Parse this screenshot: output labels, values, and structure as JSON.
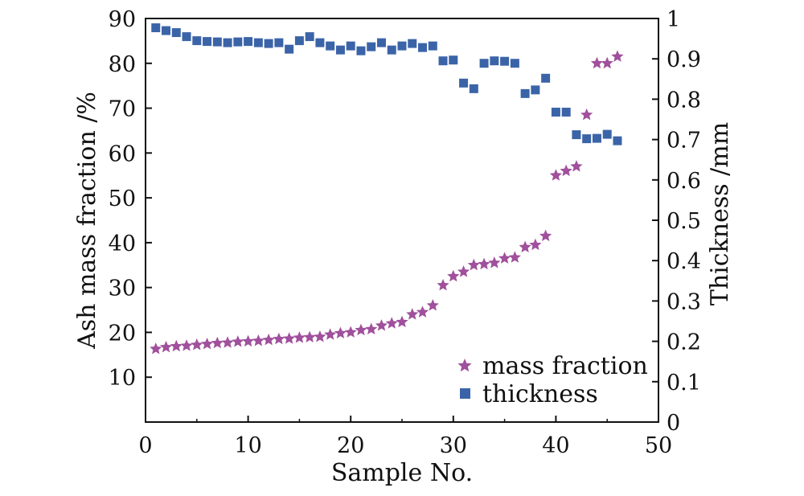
{
  "chart_data": {
    "type": "scatter",
    "xlabel": "Sample No.",
    "ylabel_left": "Ash mass fraction /%",
    "ylabel_right": "Thickness /mm",
    "xlim": [
      0,
      50
    ],
    "ylim_left": [
      0,
      90
    ],
    "ylim_right": [
      0,
      1.0
    ],
    "x_ticks": [
      0,
      10,
      20,
      30,
      40,
      50
    ],
    "y_left_ticks": [
      10,
      20,
      30,
      40,
      50,
      60,
      70,
      80,
      90
    ],
    "y_right_ticks": [
      0,
      0.1,
      0.2,
      0.3,
      0.4,
      0.5,
      0.6,
      0.7,
      0.8,
      0.9,
      1.0
    ],
    "grid": false,
    "legend_position": "bottom-right",
    "series": [
      {
        "name": "mass fraction",
        "axis": "left",
        "marker": "star",
        "color": "#a0509c",
        "x": [
          1,
          2,
          3,
          4,
          5,
          6,
          7,
          8,
          9,
          10,
          11,
          12,
          13,
          14,
          15,
          16,
          17,
          18,
          19,
          20,
          21,
          22,
          23,
          24,
          25,
          26,
          27,
          28,
          29,
          30,
          31,
          32,
          33,
          34,
          35,
          36,
          37,
          38,
          39,
          40,
          41,
          42,
          43,
          44,
          45,
          46
        ],
        "y": [
          16.3,
          16.7,
          16.9,
          17.0,
          17.2,
          17.4,
          17.6,
          17.7,
          17.9,
          18.0,
          18.1,
          18.3,
          18.5,
          18.6,
          18.8,
          18.9,
          19.0,
          19.5,
          19.8,
          20.0,
          20.5,
          20.7,
          21.5,
          22.0,
          22.3,
          24.0,
          24.5,
          26.0,
          30.5,
          32.5,
          33.5,
          35.0,
          35.2,
          35.5,
          36.5,
          36.7,
          39.0,
          39.5,
          41.5,
          55.0,
          56.0,
          57.0,
          68.5,
          80.0,
          80.0,
          81.5
        ]
      },
      {
        "name": "thickness",
        "axis": "right",
        "marker": "square",
        "color": "#3b64a8",
        "x": [
          1,
          2,
          3,
          4,
          5,
          6,
          7,
          8,
          9,
          10,
          11,
          12,
          13,
          14,
          15,
          16,
          17,
          18,
          19,
          20,
          21,
          22,
          23,
          24,
          25,
          26,
          27,
          28,
          29,
          30,
          31,
          32,
          33,
          34,
          35,
          36,
          37,
          38,
          39,
          40,
          41,
          42,
          43,
          44,
          45,
          46
        ],
        "y": [
          0.977,
          0.97,
          0.965,
          0.955,
          0.945,
          0.943,
          0.942,
          0.94,
          0.942,
          0.943,
          0.94,
          0.938,
          0.94,
          0.924,
          0.945,
          0.955,
          0.94,
          0.932,
          0.922,
          0.932,
          0.92,
          0.93,
          0.94,
          0.922,
          0.932,
          0.938,
          0.928,
          0.932,
          0.895,
          0.897,
          0.84,
          0.826,
          0.889,
          0.895,
          0.894,
          0.889,
          0.814,
          0.823,
          0.852,
          0.768,
          0.768,
          0.712,
          0.702,
          0.703,
          0.713,
          0.697
        ]
      }
    ]
  }
}
